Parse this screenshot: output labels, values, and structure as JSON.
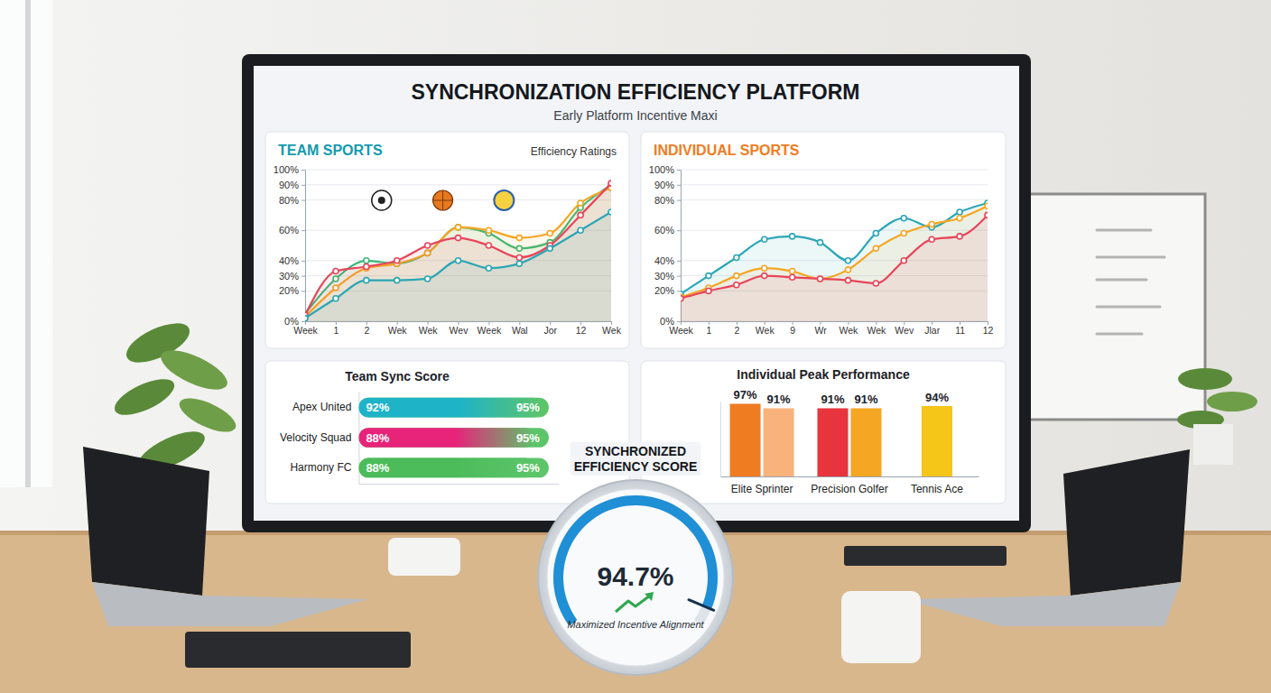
{
  "header": {
    "title": "SYNCHRONIZATION EFFICIENCY PLATFORM",
    "subtitle": "Early Platform Incentive Maxi"
  },
  "chart_data": [
    {
      "type": "line",
      "title": "TEAM SPORTS",
      "subtitle": "Efficiency Ratings",
      "categories": [
        "Week",
        "1",
        "2",
        "Wek",
        "Wek",
        "Wev",
        "Week",
        "Wal",
        "Jor",
        "12",
        "Wek"
      ],
      "series": [
        {
          "color": "#3cb878",
          "marker": "circle",
          "values": [
            5,
            28,
            40,
            38,
            45,
            62,
            58,
            48,
            52,
            75,
            90
          ]
        },
        {
          "color": "#f5a623",
          "marker": "circle",
          "values": [
            3,
            22,
            35,
            38,
            45,
            62,
            60,
            55,
            58,
            78,
            88
          ]
        },
        {
          "color": "#e8455a",
          "marker": "circle",
          "values": [
            4,
            33,
            36,
            40,
            50,
            55,
            50,
            42,
            50,
            70,
            91
          ]
        },
        {
          "color": "#2aa6b5",
          "marker": "circle",
          "values": [
            2,
            15,
            27,
            27,
            28,
            40,
            35,
            38,
            48,
            60,
            72
          ]
        }
      ],
      "ylim": [
        0,
        100
      ],
      "yticks": [
        {
          "value": 0,
          "label": "0%"
        },
        {
          "value": 20,
          "label": "20%"
        },
        {
          "value": 30,
          "label": "30%"
        },
        {
          "value": 40,
          "label": "40%"
        },
        {
          "value": 60,
          "label": "60%"
        },
        {
          "value": 80,
          "label": "80%"
        },
        {
          "value": 90,
          "label": "90%"
        },
        {
          "value": 100,
          "label": "100%"
        }
      ],
      "grid": true
    },
    {
      "type": "line",
      "title": "INDIVIDUAL SPORTS",
      "categories": [
        "Week",
        "1",
        "2",
        "Wek",
        "9",
        "Wr",
        "Wek",
        "Wek",
        "Wev",
        "Jlar",
        "11",
        "12"
      ],
      "series": [
        {
          "color": "#2aa6b5",
          "marker": "circle",
          "values": [
            18,
            30,
            42,
            54,
            56,
            52,
            40,
            58,
            68,
            62,
            72,
            78
          ]
        },
        {
          "color": "#f5a623",
          "marker": "circle",
          "values": [
            16,
            22,
            30,
            35,
            33,
            28,
            34,
            48,
            58,
            64,
            68,
            76
          ]
        },
        {
          "color": "#e8455a",
          "marker": "circle",
          "values": [
            15,
            20,
            24,
            30,
            29,
            28,
            27,
            25,
            40,
            54,
            56,
            70
          ]
        }
      ],
      "ylim": [
        0,
        100
      ],
      "yticks": [
        {
          "value": 0,
          "label": "0%"
        },
        {
          "value": 20,
          "label": "20%"
        },
        {
          "value": 30,
          "label": "30%"
        },
        {
          "value": 40,
          "label": "40%"
        },
        {
          "value": 60,
          "label": "60%"
        },
        {
          "value": 80,
          "label": "80%"
        },
        {
          "value": 90,
          "label": "90%"
        },
        {
          "value": 100,
          "label": "100%"
        }
      ],
      "grid": true
    },
    {
      "type": "bar",
      "title": "Team Sync Score",
      "orientation": "horizontal",
      "categories": [
        "Apex United",
        "Velocity Squad",
        "Harmony FC"
      ],
      "series": [
        {
          "colors": [
            "#1fb3c8",
            "#e8237a",
            "#4cbb5a"
          ],
          "values": [
            92,
            88,
            88
          ],
          "value_labels": [
            "92%",
            "88%",
            "88%"
          ]
        },
        {
          "color": "#5cc56a",
          "values": [
            95,
            95,
            95
          ],
          "value_labels": [
            "95%",
            "95%",
            "95%"
          ]
        }
      ],
      "xlim": [
        0,
        100
      ],
      "xticks": [],
      "tick_labels": "y",
      "data_labels": true
    },
    {
      "type": "bar",
      "title": "Individual Peak Performance",
      "categories": [
        "Elite Sprinter",
        "Precision Golfer",
        "Tennis Ace"
      ],
      "series": [
        {
          "colors": [
            "#f07c22",
            "#e8343c",
            "#f5c518"
          ],
          "values": [
            97,
            91,
            94
          ],
          "value_labels": [
            "97%",
            "91%",
            "94%"
          ]
        },
        {
          "colors": [
            "#f9b27c",
            "#f5a623",
            null
          ],
          "values": [
            91,
            91,
            null
          ],
          "value_labels": [
            "91%",
            "91%",
            null
          ]
        }
      ],
      "ylim": [
        0,
        100
      ],
      "yticks": [],
      "tick_labels": "x",
      "data_labels": true
    },
    {
      "type": "gauge",
      "title": "SYNCHRONIZED EFFICIENCY SCORE",
      "subtitle": "Maximized Incentive Alignment",
      "values": [
        94.7
      ],
      "value_labels": [
        "94.7%"
      ],
      "ylim": [
        0,
        100
      ],
      "color": "#1f8fd6"
    }
  ]
}
